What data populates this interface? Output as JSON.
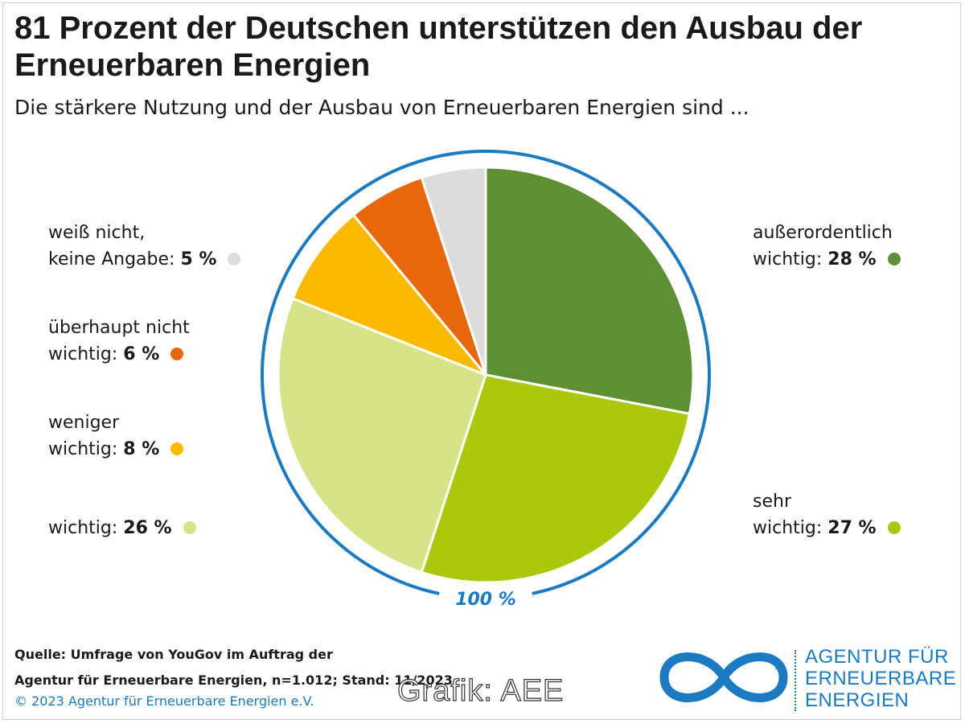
{
  "title": "81 Prozent der Deutschen unterstützen den Ausbau der Erneuerbaren Energien",
  "subtitle": "Die stärkere Nutzung und der Ausbau von Erneuerbaren Energien sind ...",
  "chart_data": {
    "type": "pie",
    "title": "81 Prozent der Deutschen unterstützen den Ausbau der Erneuerbaren Energien",
    "subtitle": "Die stärkere Nutzung und der Ausbau von Erneuerbaren Energien sind ...",
    "total_label": "100 %",
    "unit": "%",
    "slices": [
      {
        "line1": "außerordentlich",
        "line2": "wichtig:",
        "value": 28,
        "value_label": "28 %",
        "color": "#5f8f33"
      },
      {
        "line1": "sehr",
        "line2": "wichtig:",
        "value": 27,
        "value_label": "27 %",
        "color": "#abc80c"
      },
      {
        "line1": "",
        "line2": "wichtig:",
        "value": 26,
        "value_label": "26 %",
        "color": "#d6e387"
      },
      {
        "line1": "weniger",
        "line2": "wichtig:",
        "value": 8,
        "value_label": "8 %",
        "color": "#fbb900"
      },
      {
        "line1": "überhaupt nicht",
        "line2": "wichtig:",
        "value": 6,
        "value_label": "6 %",
        "color": "#e8670c"
      },
      {
        "line1": "weiß nicht,",
        "line2": "keine Angabe:",
        "value": 5,
        "value_label": "5 %",
        "color": "#dcdcdc"
      }
    ],
    "ring_color": "#1a7ac2"
  },
  "source": {
    "line1": "Quelle: Umfrage von YouGov im Auftrag der",
    "line2": "Agentur für Erneuerbare Energien, n=1.012; Stand: 11/2023",
    "copyright": "© 2023 Agentur für Erneuerbare Energien e.V."
  },
  "watermark": "Grafik: AEE",
  "logo": {
    "line1": "AGENTUR FÜR",
    "line2": "ERNEUERBARE",
    "line3": "ENERGIEN",
    "color": "#1a7ac2"
  }
}
